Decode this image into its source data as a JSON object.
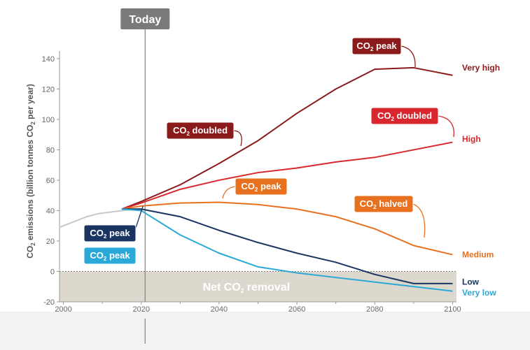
{
  "chart_data": {
    "type": "line",
    "ylabel": {
      "pre": "CO",
      "sub": "2",
      "post": " emissions (billion tonnes CO",
      "sub2": "2",
      "post2": " per year)"
    },
    "xlim": [
      1999,
      2101
    ],
    "ylim": [
      -20,
      145
    ],
    "xticks": [
      2000,
      2020,
      2040,
      2060,
      2080,
      2100
    ],
    "yticks": [
      -20,
      0,
      20,
      40,
      60,
      80,
      100,
      120,
      140
    ],
    "today": {
      "year": 2021,
      "label": "Today"
    },
    "net_removal_label": {
      "pre": "Net CO",
      "sub": "2",
      "post": " removal"
    },
    "historical": {
      "color": "#c8c8c8",
      "x": [
        1999,
        2000,
        2003,
        2006,
        2009,
        2012,
        2015,
        2018,
        2020
      ],
      "y": [
        29,
        30,
        33,
        36,
        38,
        39,
        40,
        41,
        41
      ]
    },
    "series": [
      {
        "name": "Very high",
        "color": "#8b1a1a",
        "x": [
          2015,
          2020,
          2030,
          2040,
          2050,
          2060,
          2070,
          2080,
          2090,
          2100
        ],
        "y": [
          41,
          46,
          57,
          71,
          86,
          104,
          120,
          133,
          134,
          129
        ]
      },
      {
        "name": "High",
        "color": "#d8282d",
        "x": [
          2015,
          2020,
          2030,
          2040,
          2050,
          2060,
          2070,
          2080,
          2090,
          2100
        ],
        "y": [
          41,
          45,
          54,
          60,
          65,
          68,
          72,
          75,
          80,
          85
        ]
      },
      {
        "name": "Medium",
        "color": "#e8711f",
        "x": [
          2015,
          2020,
          2030,
          2040,
          2050,
          2060,
          2070,
          2080,
          2090,
          2100
        ],
        "y": [
          41,
          43,
          45,
          45.5,
          44,
          41,
          36,
          28,
          17,
          11
        ]
      },
      {
        "name": "Low",
        "color": "#1b3563",
        "x": [
          2015,
          2020,
          2030,
          2040,
          2050,
          2060,
          2070,
          2080,
          2090,
          2100
        ],
        "y": [
          41,
          41,
          36,
          27,
          19,
          12,
          6,
          -2,
          -8,
          -8
        ]
      },
      {
        "name": "Very low",
        "color": "#2aa8d8",
        "x": [
          2015,
          2020,
          2030,
          2040,
          2050,
          2060,
          2070,
          2080,
          2090,
          2100
        ],
        "y": [
          41,
          40,
          24,
          12,
          3,
          -1,
          -4,
          -7,
          -10,
          -13
        ]
      }
    ],
    "annotations": [
      {
        "name": "very-high-peak",
        "pre": "CO",
        "sub": "2",
        "post": " peak",
        "color": "#8b1a1a",
        "series": "Very high"
      },
      {
        "name": "very-high-doubled",
        "pre": "CO",
        "sub": "2",
        "post": " doubled",
        "color": "#8b1a1a",
        "series": "Very high"
      },
      {
        "name": "high-doubled",
        "pre": "CO",
        "sub": "2",
        "post": " doubled",
        "color": "#d8282d",
        "series": "High"
      },
      {
        "name": "medium-peak",
        "pre": "CO",
        "sub": "2",
        "post": " peak",
        "color": "#e8711f",
        "series": "Medium"
      },
      {
        "name": "medium-halved",
        "pre": "CO",
        "sub": "2",
        "post": " halved",
        "color": "#e8711f",
        "series": "Medium"
      },
      {
        "name": "low-peak",
        "pre": "CO",
        "sub": "2",
        "post": " peak",
        "color": "#1b3563",
        "series": "Low"
      },
      {
        "name": "very-low-peak",
        "pre": "CO",
        "sub": "2",
        "post": " peak",
        "color": "#2aa8d8",
        "series": "Very low"
      }
    ],
    "grid": false
  }
}
